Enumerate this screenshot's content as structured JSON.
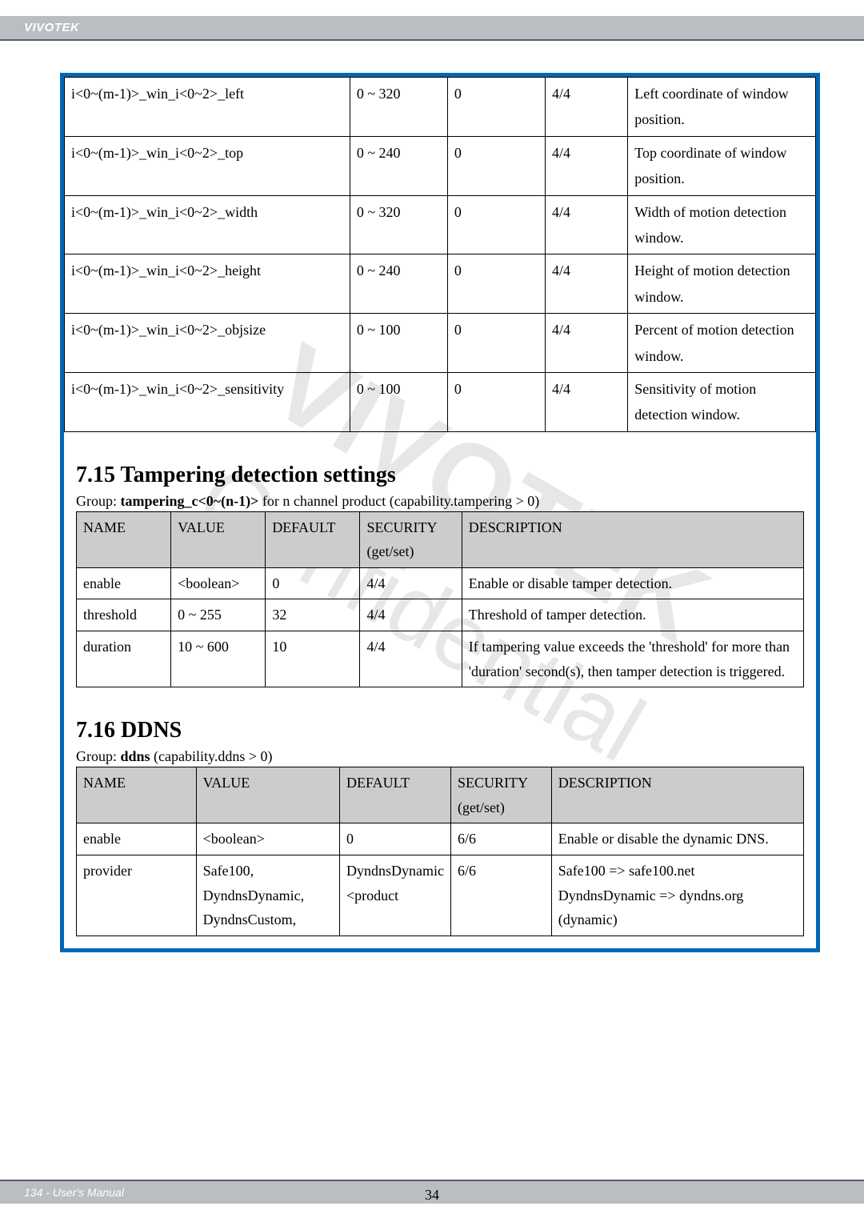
{
  "header": {
    "brand": "VIVOTEK"
  },
  "footer": {
    "left_text": "134 - User's Manual",
    "center_num": "34"
  },
  "table_motion": {
    "rows": [
      {
        "name": "i<0~(m-1)>_win_i<0~2>_left",
        "value": "0 ~ 320",
        "default": "0",
        "security": "4/4",
        "desc": "Left coordinate of window position."
      },
      {
        "name": "i<0~(m-1)>_win_i<0~2>_top",
        "value": "0 ~ 240",
        "default": "0",
        "security": "4/4",
        "desc": "Top coordinate of window position."
      },
      {
        "name": "i<0~(m-1)>_win_i<0~2>_width",
        "value": "0 ~ 320",
        "default": "0",
        "security": "4/4",
        "desc": "Width of motion detection window."
      },
      {
        "name": "i<0~(m-1)>_win_i<0~2>_height",
        "value": "0 ~ 240",
        "default": "0",
        "security": "4/4",
        "desc": "Height of motion detection window."
      },
      {
        "name": "i<0~(m-1)>_win_i<0~2>_objsize",
        "value": "0 ~ 100",
        "default": "0",
        "security": "4/4",
        "desc": "Percent of motion detection window."
      },
      {
        "name": "i<0~(m-1)>_win_i<0~2>_sensitivity",
        "value": "0 ~ 100",
        "default": "0",
        "security": "4/4",
        "desc": "Sensitivity of motion detection window."
      }
    ]
  },
  "section_tampering": {
    "heading": "7.15 Tampering detection settings",
    "group_prefix": "Group: ",
    "group_bold": "tampering_c<0~(n-1)>",
    "group_suffix": " for n channel product (capability.tampering > 0)",
    "headers": {
      "c1": "NAME",
      "c2": "VALUE",
      "c3": "DEFAULT",
      "c4": "SECURITY (get/set)",
      "c5": "DESCRIPTION"
    },
    "rows": [
      {
        "name": "enable",
        "value": "<boolean>",
        "default": "0",
        "security": "4/4",
        "desc": "Enable or disable tamper detection."
      },
      {
        "name": "threshold",
        "value": "0 ~ 255",
        "default": "32",
        "security": "4/4",
        "desc": "Threshold of tamper detection."
      },
      {
        "name": "duration",
        "value": "10 ~ 600",
        "default": "10",
        "security": "4/4",
        "desc": "If tampering value exceeds the 'threshold' for more than 'duration' second(s), then tamper detection is triggered."
      }
    ]
  },
  "section_ddns": {
    "heading": "7.16 DDNS",
    "group_prefix": "Group: ",
    "group_bold": "ddns",
    "group_suffix": " (capability.ddns > 0)",
    "headers": {
      "c1": "NAME",
      "c2": "VALUE",
      "c3": "DEFAULT",
      "c4": "SECURITY (get/set)",
      "c5": "DESCRIPTION"
    },
    "rows": [
      {
        "name": "enable",
        "value": "<boolean>",
        "default": "0",
        "security": "6/6",
        "desc": "Enable or disable the dynamic DNS."
      },
      {
        "name": "provider",
        "value": "Safe100, DyndnsDynamic, DyndnsCustom,",
        "default": "DyndnsDynamic",
        "security": "6/6",
        "desc": "Safe100 => safe100.net\nDyndnsDynamic => dyndns.org (dynamic)"
      }
    ]
  }
}
